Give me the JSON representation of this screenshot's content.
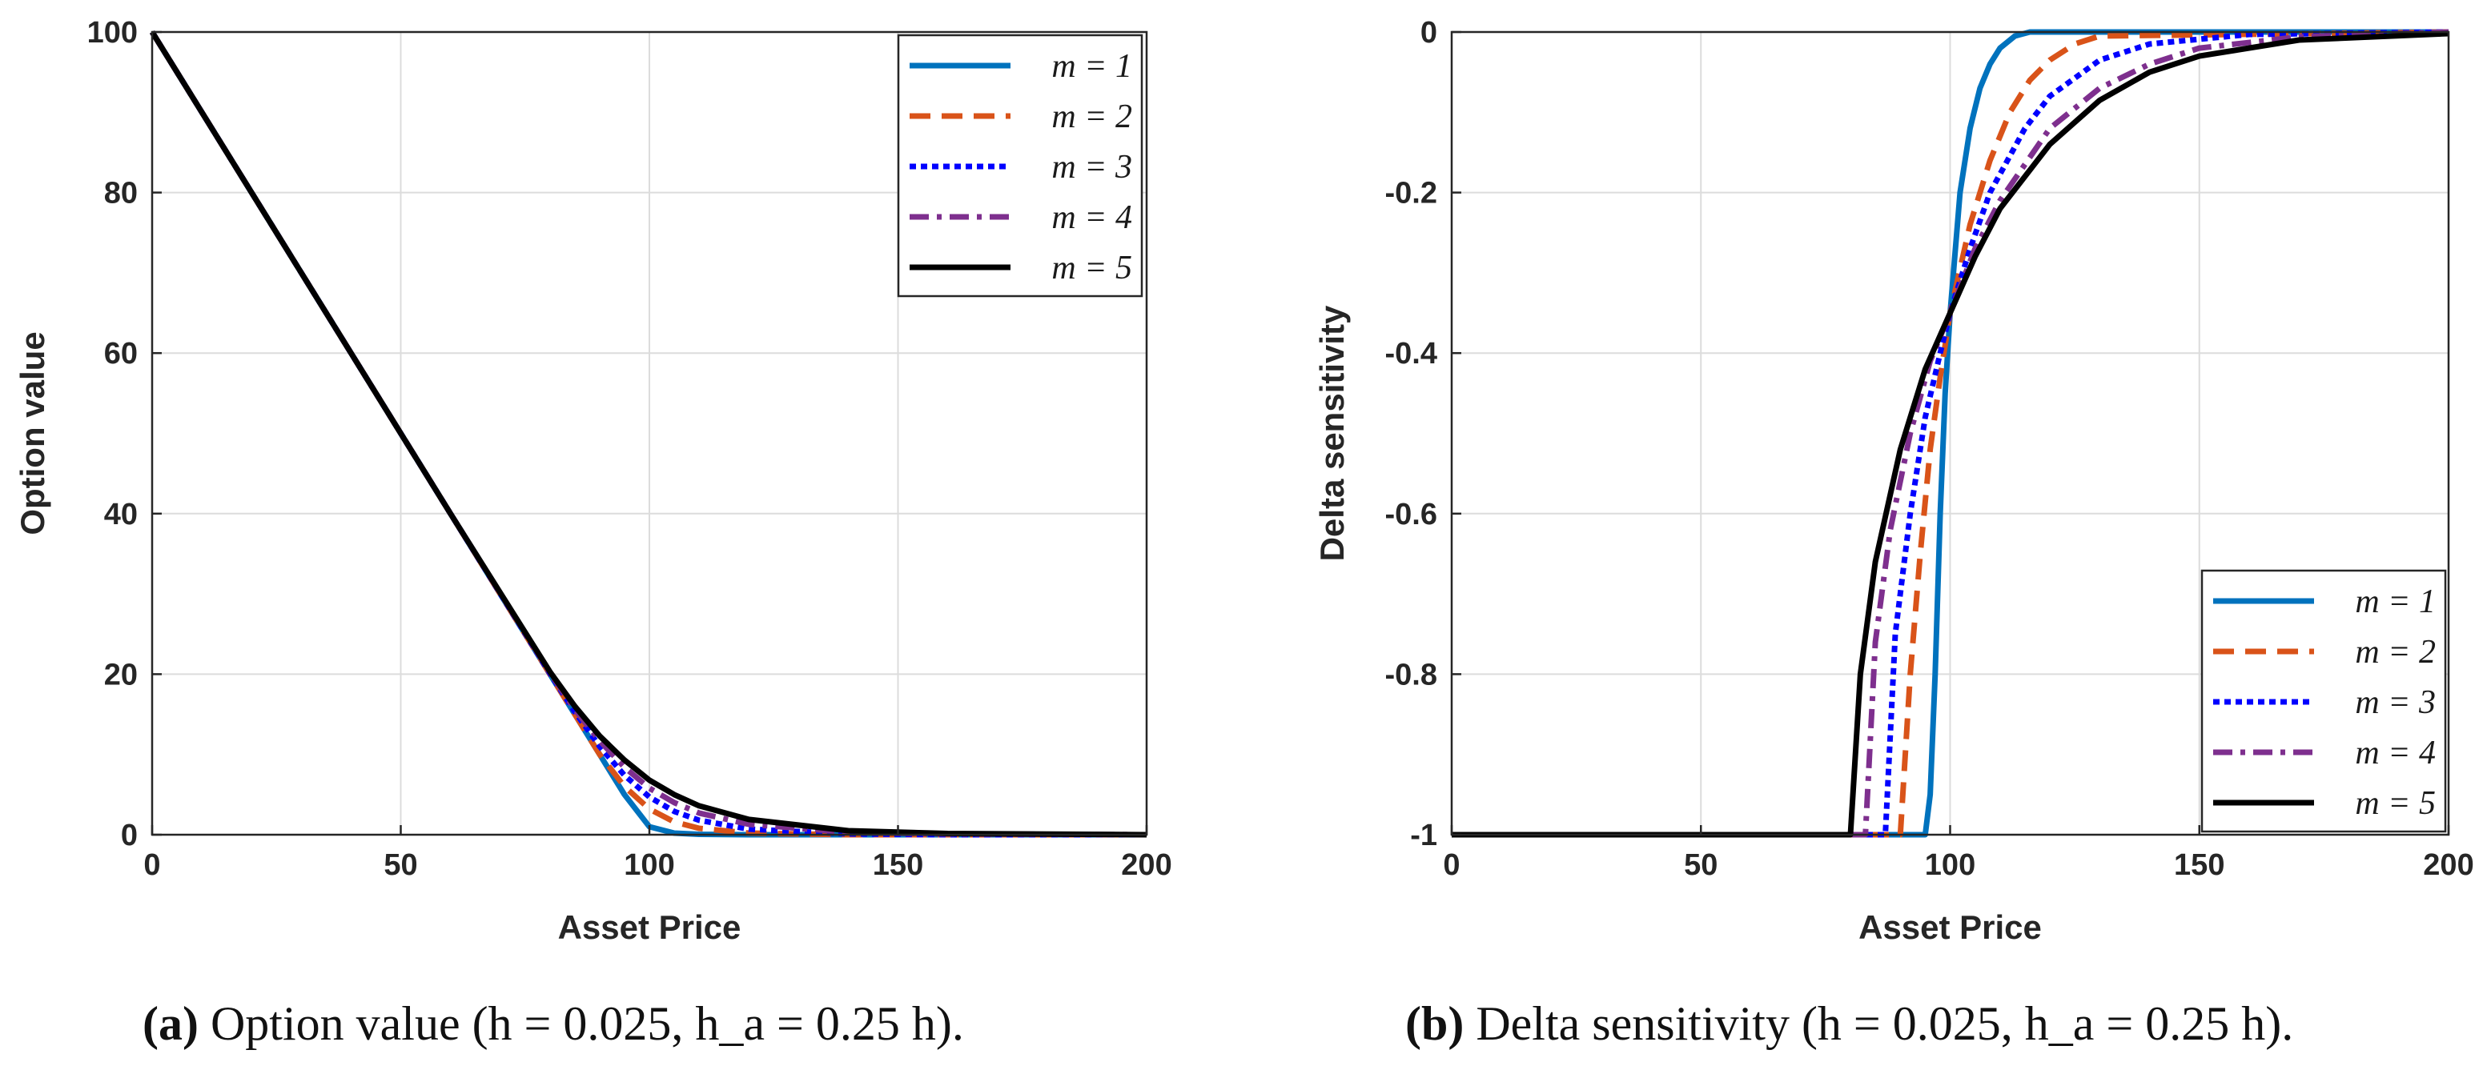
{
  "colors": {
    "m1": "#0072BD",
    "m2": "#D95319",
    "m3": "#0000FF",
    "m4": "#7E2F8E",
    "m5": "#000000"
  },
  "captions": {
    "a_label": "(a)",
    "a_text": "Option value (h = 0.025, h_a = 0.25 h).",
    "b_label": "(b)",
    "b_text": "Delta sensitivity (h = 0.025, h_a = 0.25 h)."
  },
  "chart_data": [
    {
      "id": "a",
      "type": "line",
      "title": "",
      "xlabel": "Asset Price",
      "ylabel": "Option value",
      "xlim": [
        0,
        200
      ],
      "ylim": [
        0,
        100
      ],
      "xticks": [
        0,
        50,
        100,
        150,
        200
      ],
      "yticks": [
        0,
        20,
        40,
        60,
        80,
        100
      ],
      "grid": true,
      "legend_position": "top-right",
      "series": [
        {
          "name": "m = 1",
          "style": "solid",
          "x": [
            0,
            20,
            40,
            60,
            80,
            85,
            90,
            95,
            100,
            105,
            110,
            120,
            140,
            160,
            200
          ],
          "y": [
            100,
            80,
            60,
            40,
            20,
            15,
            10,
            5,
            1,
            0.2,
            0.05,
            0,
            0,
            0,
            0
          ]
        },
        {
          "name": "m = 2",
          "style": "dashed",
          "x": [
            0,
            20,
            40,
            60,
            80,
            85,
            90,
            95,
            100,
            105,
            110,
            120,
            140,
            160,
            200
          ],
          "y": [
            100,
            80,
            60,
            40,
            20,
            15,
            10,
            6,
            3.2,
            1.6,
            0.8,
            0.2,
            0,
            0,
            0
          ]
        },
        {
          "name": "m = 3",
          "style": "dotted",
          "x": [
            0,
            20,
            40,
            60,
            80,
            85,
            90,
            95,
            100,
            105,
            110,
            120,
            140,
            160,
            200
          ],
          "y": [
            100,
            80,
            60,
            40,
            20.1,
            15.3,
            11,
            7.4,
            4.7,
            2.9,
            1.8,
            0.7,
            0.1,
            0,
            0
          ]
        },
        {
          "name": "m = 4",
          "style": "dashdot",
          "x": [
            0,
            20,
            40,
            60,
            80,
            85,
            90,
            95,
            100,
            105,
            110,
            120,
            140,
            160,
            200
          ],
          "y": [
            100,
            80,
            60,
            40,
            20.2,
            15.6,
            11.7,
            8.4,
            5.8,
            4,
            2.7,
            1.3,
            0.3,
            0.1,
            0
          ]
        },
        {
          "name": "m = 5",
          "style": "solid",
          "x": [
            0,
            20,
            40,
            60,
            80,
            85,
            90,
            95,
            100,
            105,
            110,
            120,
            140,
            160,
            200
          ],
          "y": [
            100,
            80,
            60,
            40,
            20.3,
            16,
            12.3,
            9.3,
            6.8,
            5,
            3.6,
            1.9,
            0.5,
            0.15,
            0
          ]
        }
      ]
    },
    {
      "id": "b",
      "type": "line",
      "title": "",
      "xlabel": "Asset Price",
      "ylabel": "Delta sensitivity",
      "xlim": [
        0,
        200
      ],
      "ylim": [
        -1,
        0
      ],
      "xticks": [
        0,
        50,
        100,
        150,
        200
      ],
      "yticks": [
        0,
        -0.2,
        -0.4,
        -0.6,
        -0.8,
        -1
      ],
      "ytick_labels": [
        "0",
        "-0.2",
        "-0.4",
        "-0.6",
        "-0.8",
        "-1"
      ],
      "grid": true,
      "legend_position": "bottom-right",
      "series": [
        {
          "name": "m = 1",
          "style": "solid",
          "x": [
            0,
            95,
            96,
            97,
            98,
            99,
            100,
            102,
            104,
            106,
            108,
            110,
            113,
            116,
            200
          ],
          "y": [
            -1,
            -1,
            -0.95,
            -0.8,
            -0.6,
            -0.45,
            -0.35,
            -0.2,
            -0.12,
            -0.07,
            -0.04,
            -0.02,
            -0.005,
            0,
            0
          ]
        },
        {
          "name": "m = 2",
          "style": "dashed",
          "x": [
            0,
            90,
            92,
            94,
            96,
            98,
            100,
            104,
            108,
            112,
            116,
            120,
            125,
            130,
            200
          ],
          "y": [
            -1,
            -1,
            -0.8,
            -0.65,
            -0.52,
            -0.43,
            -0.35,
            -0.24,
            -0.16,
            -0.1,
            -0.06,
            -0.035,
            -0.015,
            -0.005,
            0
          ]
        },
        {
          "name": "m = 3",
          "style": "dotted",
          "x": [
            0,
            87,
            89,
            92,
            95,
            98,
            100,
            104,
            108,
            115,
            120,
            130,
            140,
            160,
            200
          ],
          "y": [
            -1,
            -1,
            -0.75,
            -0.6,
            -0.48,
            -0.4,
            -0.35,
            -0.27,
            -0.2,
            -0.12,
            -0.08,
            -0.035,
            -0.015,
            -0.003,
            0
          ]
        },
        {
          "name": "m = 4",
          "style": "dashdot",
          "x": [
            0,
            83,
            85,
            88,
            92,
            96,
            100,
            105,
            110,
            120,
            130,
            140,
            150,
            170,
            200
          ],
          "y": [
            -1,
            -1,
            -0.76,
            -0.62,
            -0.5,
            -0.41,
            -0.35,
            -0.27,
            -0.21,
            -0.12,
            -0.07,
            -0.04,
            -0.02,
            -0.006,
            0
          ]
        },
        {
          "name": "m = 5",
          "style": "solid",
          "x": [
            0,
            80,
            82,
            85,
            90,
            95,
            100,
            105,
            110,
            120,
            130,
            140,
            150,
            170,
            200
          ],
          "y": [
            -1,
            -1,
            -0.8,
            -0.66,
            -0.52,
            -0.42,
            -0.35,
            -0.28,
            -0.22,
            -0.14,
            -0.085,
            -0.05,
            -0.03,
            -0.01,
            -0.002
          ]
        }
      ]
    }
  ]
}
